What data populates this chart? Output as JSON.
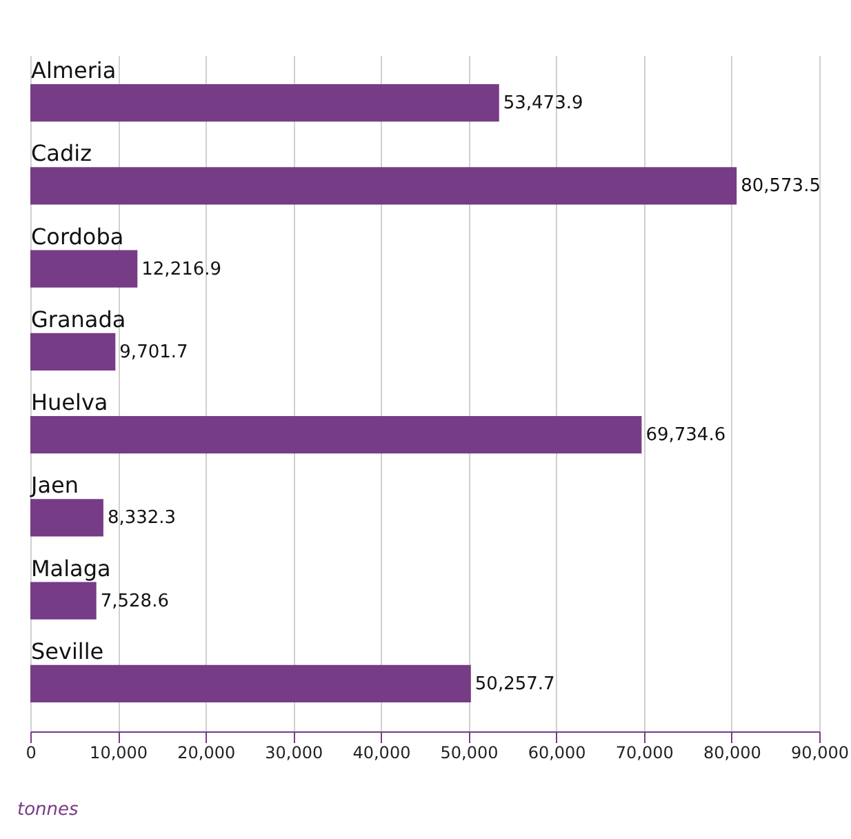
{
  "chart_data": {
    "type": "bar",
    "orientation": "horizontal",
    "xlabel": "tonnes",
    "categories": [
      "Almeria",
      "Cadiz",
      "Cordoba",
      "Granada",
      "Huelva",
      "Jaen",
      "Malaga",
      "Seville"
    ],
    "values": [
      53473.9,
      80573.5,
      12216.9,
      9701.7,
      69734.6,
      8332.3,
      7528.6,
      50257.7
    ],
    "value_labels": [
      "53,473.9",
      "80,573.5",
      "12,216.9",
      "9,701.7",
      "69,734.6",
      "8,332.3",
      "7,528.6",
      "50,257.7"
    ],
    "color": "#763c86",
    "xlim": [
      0,
      90000
    ],
    "xticks": [
      0,
      {
        "value": 10000,
        "label": "10,000"
      },
      {
        "value": 20000,
        "label": "20,000"
      },
      {
        "value": 30000,
        "label": "30,000"
      },
      {
        "value": 40000,
        "label": "40,000"
      },
      {
        "value": 50000,
        "label": "50,000"
      },
      {
        "value": 60000,
        "label": "60,000"
      },
      {
        "value": 70000,
        "label": "70,000"
      },
      {
        "value": 80000,
        "label": "80,000"
      },
      {
        "value": 90000,
        "label": "90,000"
      }
    ],
    "grid": true,
    "data_labels": true
  }
}
